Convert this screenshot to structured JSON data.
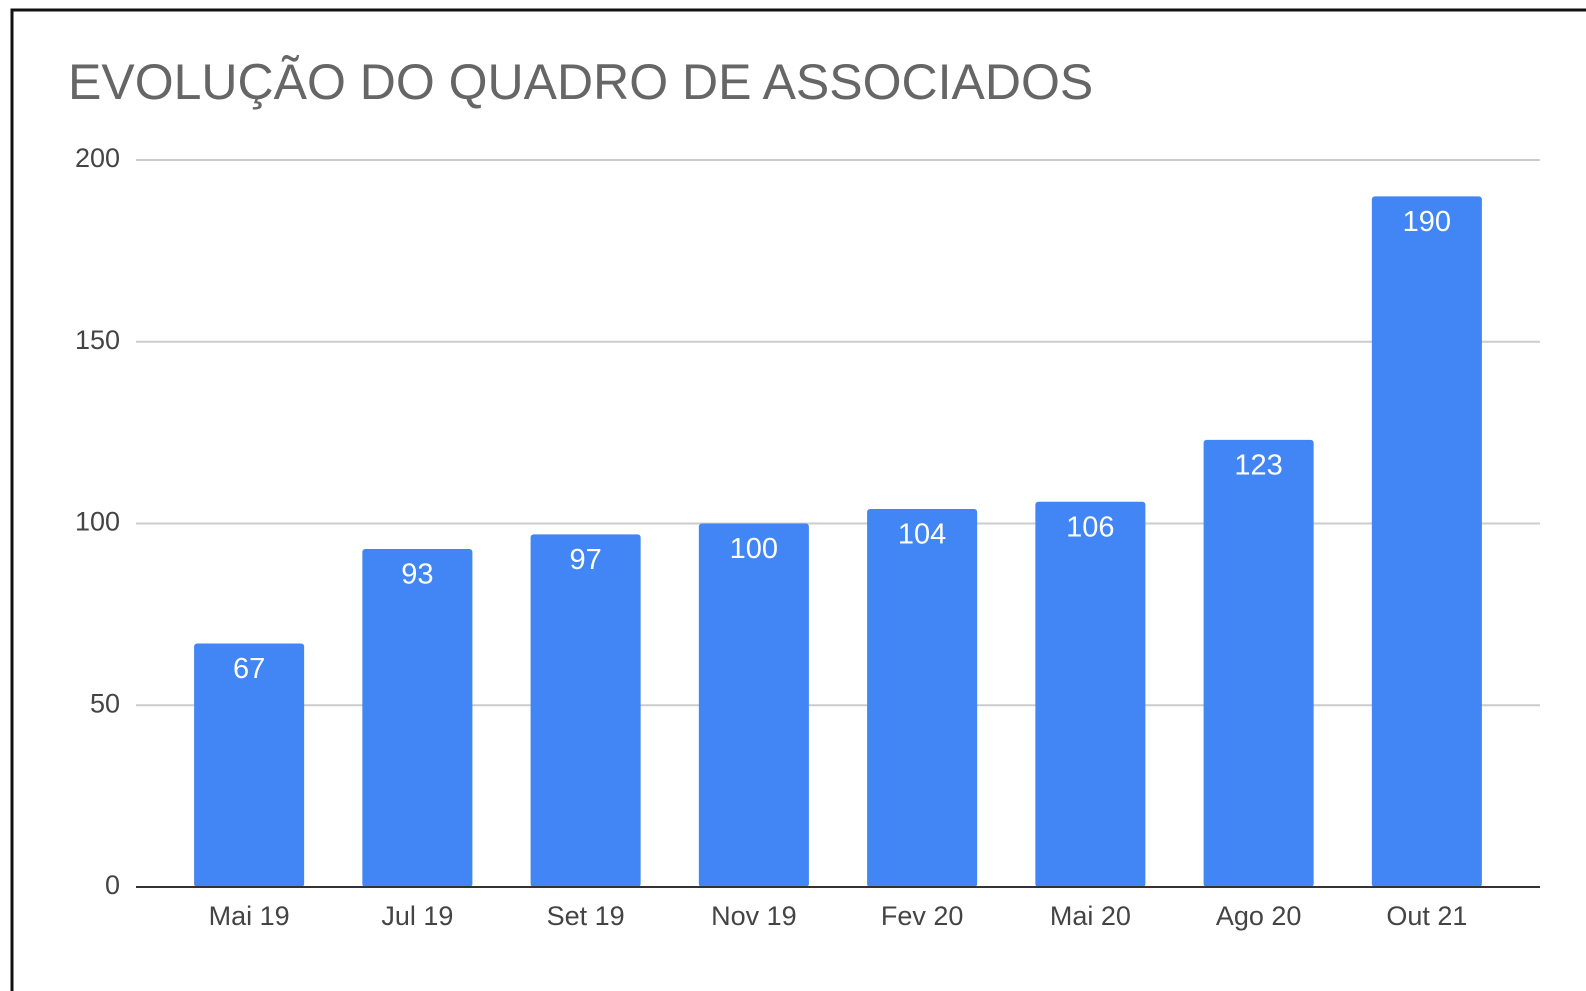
{
  "chart_data": {
    "type": "bar",
    "title": "EVOLUÇÃO DO QUADRO DE ASSOCIADOS",
    "categories": [
      "Mai 19",
      "Jul 19",
      "Set 19",
      "Nov 19",
      "Fev 20",
      "Mai 20",
      "Ago 20",
      "Out 21"
    ],
    "values": [
      67,
      93,
      97,
      100,
      104,
      106,
      123,
      190
    ],
    "color": "#4285f4",
    "ylim": [
      0,
      200
    ],
    "yticks": [
      0,
      50,
      100,
      150,
      200
    ],
    "grid": true
  }
}
